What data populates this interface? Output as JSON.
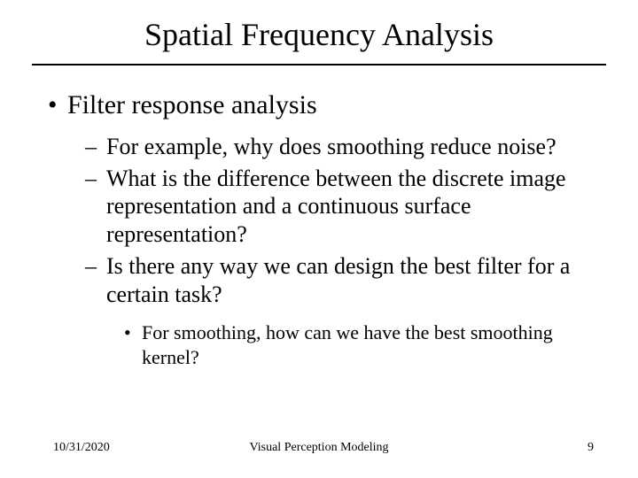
{
  "title": "Spatial Frequency Analysis",
  "title_color": "#000000",
  "underline_color": "#000000",
  "background_color": "#ffffff",
  "bullets": {
    "l1": [
      {
        "text": "Filter response analysis"
      }
    ],
    "l2": [
      {
        "text": "For example, why does smoothing reduce noise?"
      },
      {
        "text": "What is the difference between the discrete image representation and a continuous surface representation?"
      },
      {
        "text": "Is there any way we can design the best filter for a certain task?"
      }
    ],
    "l3": [
      {
        "text": "For smoothing, how can we have the best smoothing kernel?"
      }
    ]
  },
  "footer": {
    "date": "10/31/2020",
    "center": "Visual Perception Modeling",
    "page": "9"
  },
  "typography": {
    "font_family": "Times New Roman",
    "title_fontsize_pt": 36,
    "l1_fontsize_pt": 30,
    "l2_fontsize_pt": 26,
    "l3_fontsize_pt": 22,
    "footer_fontsize_pt": 14
  }
}
